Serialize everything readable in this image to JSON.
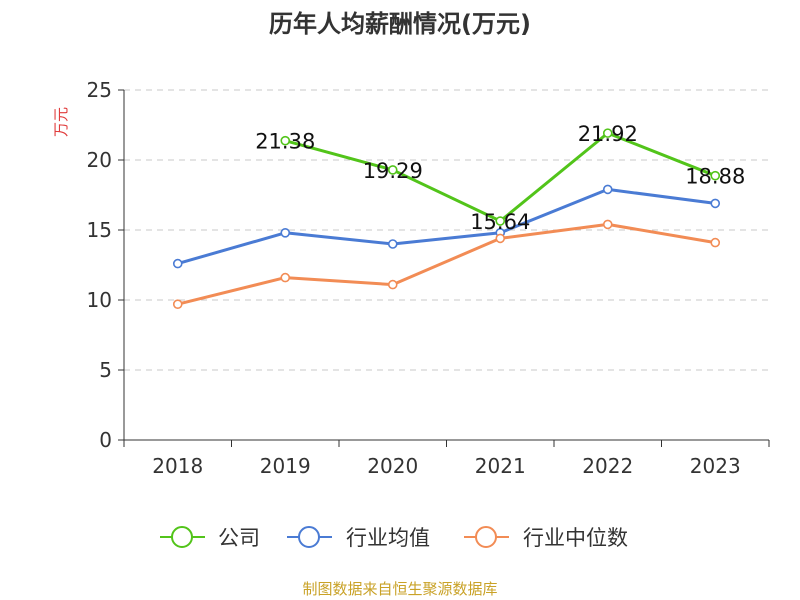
{
  "chart_data": {
    "type": "line",
    "title": "历年人均薪酬情况(万元)",
    "ylabel": "万元",
    "xlabel": "",
    "categories": [
      "2018",
      "2019",
      "2020",
      "2021",
      "2022",
      "2023"
    ],
    "ylim": [
      0,
      25
    ],
    "yticks": [
      "0",
      "5",
      "10",
      "15",
      "20",
      "25"
    ],
    "grid": true,
    "legend_position": "bottom",
    "series": [
      {
        "name": "公司",
        "color": "#52c41a",
        "values": [
          null,
          21.38,
          19.29,
          15.64,
          21.92,
          18.88
        ],
        "labels": [
          null,
          "21.38",
          "19.29",
          "15.64",
          "21.92",
          "18.88"
        ]
      },
      {
        "name": "行业均值",
        "color": "#4a7bd4",
        "values": [
          12.6,
          14.8,
          14.0,
          14.8,
          17.9,
          16.9
        ]
      },
      {
        "name": "行业中位数",
        "color": "#f28c55",
        "values": [
          9.7,
          11.6,
          11.1,
          14.4,
          15.4,
          14.1
        ]
      }
    ]
  },
  "colors": {
    "unit_label": "#e03c3c",
    "source_text": "#c9a227",
    "grid": "#c8c8c8",
    "axis": "#333333"
  },
  "source_text": "制图数据来自恒生聚源数据库"
}
